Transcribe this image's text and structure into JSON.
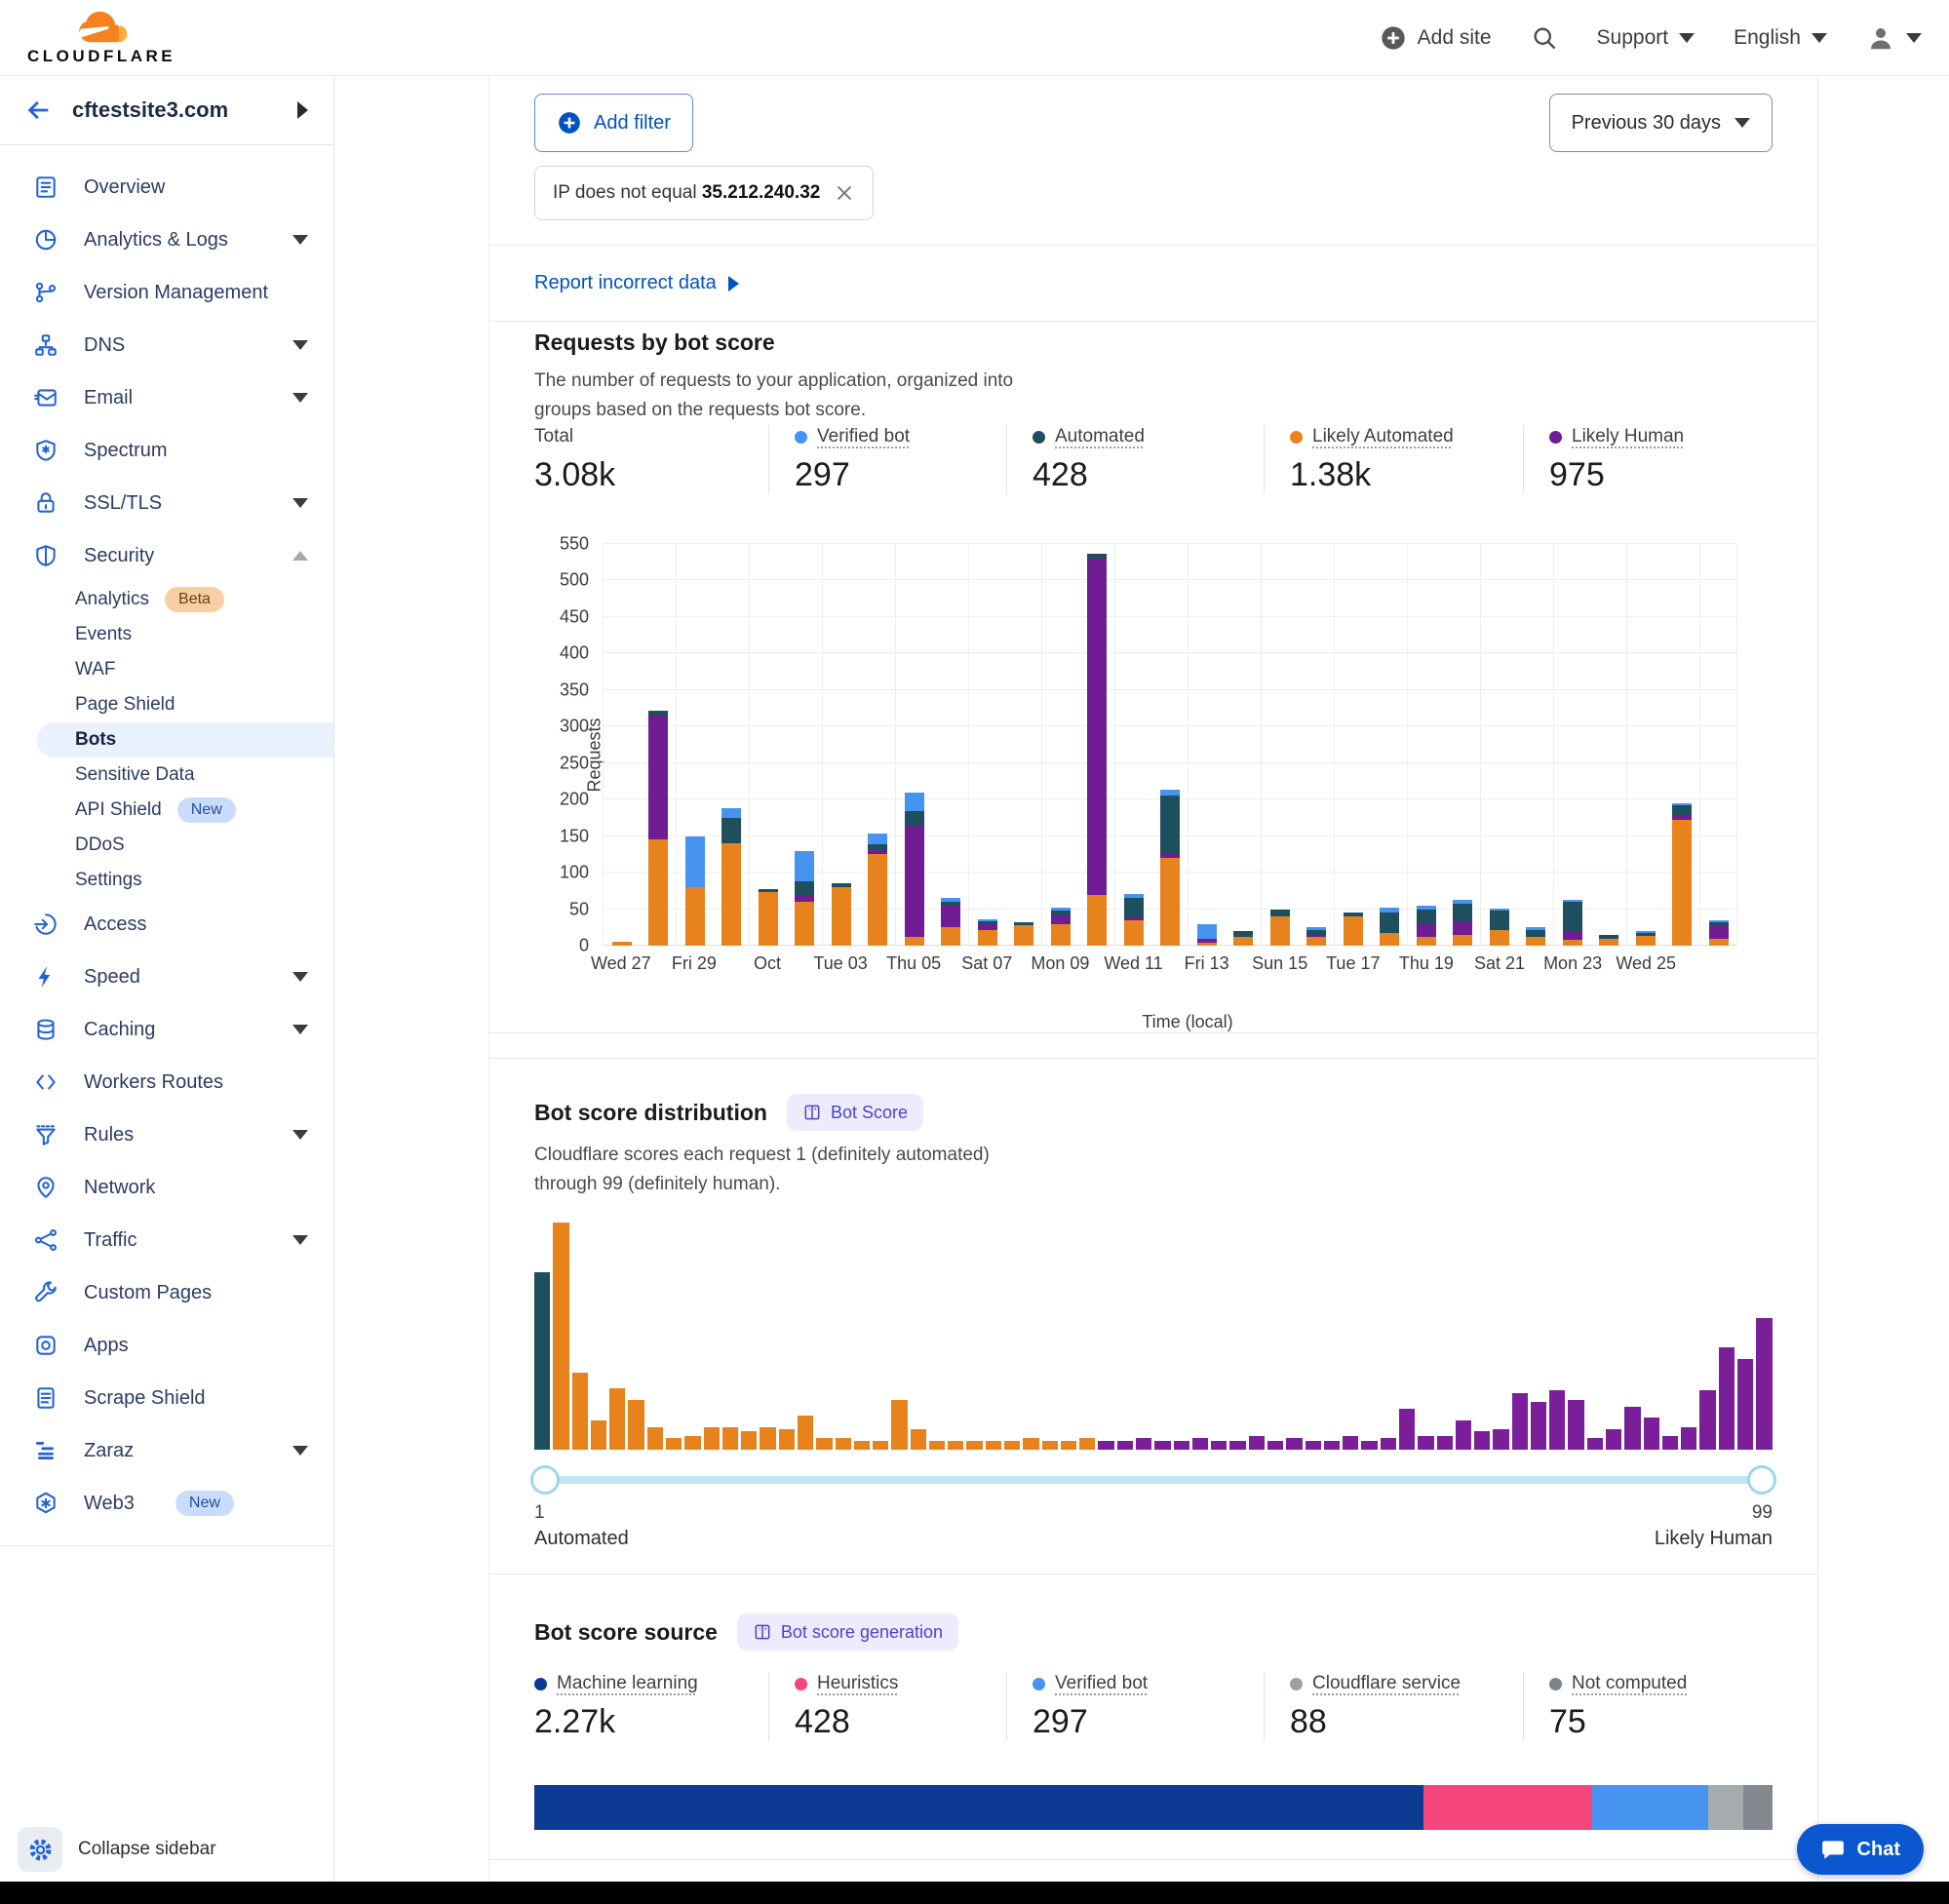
{
  "header": {
    "logo": "CLOUDFLARE",
    "add_site": "Add site",
    "support": "Support",
    "language": "English"
  },
  "sidebar": {
    "site_name": "cftestsite3.com",
    "items": [
      {
        "label": "Overview",
        "icon": "overview-icon"
      },
      {
        "label": "Analytics & Logs",
        "icon": "analytics-icon",
        "expandable": true
      },
      {
        "label": "Version Management",
        "icon": "version-management-icon"
      },
      {
        "label": "DNS",
        "icon": "dns-icon",
        "expandable": true
      },
      {
        "label": "Email",
        "icon": "email-icon",
        "expandable": true
      },
      {
        "label": "Spectrum",
        "icon": "spectrum-icon"
      },
      {
        "label": "SSL/TLS",
        "icon": "ssl-tls-icon",
        "expandable": true
      },
      {
        "label": "Security",
        "icon": "security-icon",
        "expandable": true,
        "expanded": true,
        "children": [
          {
            "label": "Analytics",
            "badge": "Beta",
            "badge_style": "beta"
          },
          {
            "label": "Events"
          },
          {
            "label": "WAF"
          },
          {
            "label": "Page Shield"
          },
          {
            "label": "Bots",
            "selected": true
          },
          {
            "label": "Sensitive Data"
          },
          {
            "label": "API Shield",
            "badge": "New",
            "badge_style": "new"
          },
          {
            "label": "DDoS"
          },
          {
            "label": "Settings"
          }
        ]
      },
      {
        "label": "Access",
        "icon": "access-icon"
      },
      {
        "label": "Speed",
        "icon": "speed-icon",
        "expandable": true
      },
      {
        "label": "Caching",
        "icon": "caching-icon",
        "expandable": true
      },
      {
        "label": "Workers Routes",
        "icon": "workers-routes-icon"
      },
      {
        "label": "Rules",
        "icon": "rules-icon",
        "expandable": true
      },
      {
        "label": "Network",
        "icon": "network-icon"
      },
      {
        "label": "Traffic",
        "icon": "traffic-icon",
        "expandable": true
      },
      {
        "label": "Custom Pages",
        "icon": "custom-pages-icon"
      },
      {
        "label": "Apps",
        "icon": "apps-icon"
      },
      {
        "label": "Scrape Shield",
        "icon": "scrape-shield-icon"
      },
      {
        "label": "Zaraz",
        "icon": "zaraz-icon",
        "expandable": true
      },
      {
        "label": "Web3",
        "icon": "web3-icon",
        "badge": "New",
        "badge_style": "new"
      }
    ],
    "collapse_label": "Collapse sidebar"
  },
  "toolbar": {
    "add_filter": "Add filter",
    "filter_chip": {
      "text": "IP does not equal",
      "value": "35.212.240.32"
    },
    "time_range": "Previous 30 days"
  },
  "report_link": "Report incorrect data",
  "requests_section": {
    "title": "Requests by bot score",
    "description_line1": "The number of requests to your application, organized into",
    "description_line2": "groups based on the requests bot score.",
    "stats": [
      {
        "label": "Total",
        "value": "3.08k",
        "color": null
      },
      {
        "label": "Verified bot",
        "value": "297",
        "color": "#4693f0"
      },
      {
        "label": "Automated",
        "value": "428",
        "color": "#1d4f5f"
      },
      {
        "label": "Likely Automated",
        "value": "1.38k",
        "color": "#e8821d"
      },
      {
        "label": "Likely Human",
        "value": "975",
        "color": "#701d93"
      }
    ]
  },
  "distribution_section": {
    "title": "Bot score distribution",
    "badge": "Bot Score",
    "description_line1": "Cloudflare scores each request 1 (definitely automated)",
    "description_line2": "through 99 (definitely human).",
    "slider": {
      "min_label": "1",
      "max_label": "99",
      "left_caption": "Automated",
      "right_caption": "Likely Human"
    }
  },
  "source_section": {
    "title": "Bot score source",
    "badge": "Bot score generation",
    "stats": [
      {
        "label": "Machine learning",
        "value": "2.27k",
        "color": "#0d3a93"
      },
      {
        "label": "Heuristics",
        "value": "428",
        "color": "#f5477b"
      },
      {
        "label": "Verified bot",
        "value": "297",
        "color": "#4693f0"
      },
      {
        "label": "Cloudflare service",
        "value": "88",
        "color": "#9aa0a5"
      },
      {
        "label": "Not computed",
        "value": "75",
        "color": "#7e8489"
      }
    ]
  },
  "chat_label": "Chat",
  "chart_data": [
    {
      "type": "bar",
      "stacked": true,
      "title": "Requests by bot score",
      "xlabel": "Time (local)",
      "ylabel": "Requests",
      "ylim": [
        0,
        550
      ],
      "ytick_step": 50,
      "grid": true,
      "x_tick_labels": [
        "Wed 27",
        "Fri 29",
        "Oct",
        "Tue 03",
        "Thu 05",
        "Sat 07",
        "Mon 09",
        "Wed 11",
        "Fri 13",
        "Sun 15",
        "Tue 17",
        "Thu 19",
        "Sat 21",
        "Mon 23",
        "Wed 25"
      ],
      "num_bars": 31,
      "series": [
        {
          "name": "Likely Automated",
          "color": "#e8821d",
          "values": [
            6,
            145,
            80,
            140,
            74,
            60,
            80,
            125,
            12,
            25,
            22,
            28,
            30,
            70,
            35,
            120,
            4,
            12,
            40,
            12,
            40,
            18,
            12,
            15,
            22,
            12,
            8,
            10,
            14,
            172,
            10
          ]
        },
        {
          "name": "Likely Human",
          "color": "#701d93",
          "values": [
            0,
            170,
            0,
            0,
            0,
            8,
            0,
            6,
            152,
            30,
            8,
            0,
            12,
            460,
            4,
            5,
            6,
            0,
            0,
            3,
            0,
            0,
            18,
            18,
            0,
            0,
            12,
            0,
            0,
            5,
            18
          ]
        },
        {
          "name": "Automated",
          "color": "#1d4f5f",
          "values": [
            0,
            7,
            0,
            35,
            4,
            20,
            5,
            8,
            20,
            5,
            3,
            4,
            6,
            7,
            26,
            80,
            0,
            8,
            10,
            6,
            5,
            28,
            20,
            25,
            26,
            10,
            40,
            5,
            4,
            15,
            4
          ]
        },
        {
          "name": "Verified bot",
          "color": "#4693f0",
          "values": [
            0,
            0,
            70,
            13,
            0,
            42,
            0,
            14,
            26,
            5,
            2,
            0,
            4,
            0,
            6,
            8,
            20,
            0,
            0,
            4,
            0,
            6,
            5,
            5,
            3,
            3,
            3,
            0,
            2,
            3,
            3
          ]
        }
      ],
      "totals": {
        "Total": "3.08k",
        "Verified bot": 297,
        "Automated": 428,
        "Likely Automated": "1.38k",
        "Likely Human": 975
      }
    },
    {
      "type": "bar",
      "title": "Bot score distribution",
      "xlim": [
        1,
        99
      ],
      "note": "histogram of request bot scores; h = height relative to max bar = 100; c: t=Automated teal, o=Likely Automated orange, p=Likely Human purple",
      "colors": {
        "t": "#1d4f5f",
        "o": "#e8821d",
        "p": "#7a1f99"
      },
      "bars": [
        {
          "c": "t",
          "h": 78
        },
        {
          "c": "o",
          "h": 100
        },
        {
          "c": "o",
          "h": 34
        },
        {
          "c": "o",
          "h": 13
        },
        {
          "c": "o",
          "h": 27
        },
        {
          "c": "o",
          "h": 22
        },
        {
          "c": "o",
          "h": 10
        },
        {
          "c": "o",
          "h": 5
        },
        {
          "c": "o",
          "h": 6
        },
        {
          "c": "o",
          "h": 10
        },
        {
          "c": "o",
          "h": 10
        },
        {
          "c": "o",
          "h": 8
        },
        {
          "c": "o",
          "h": 10
        },
        {
          "c": "o",
          "h": 9
        },
        {
          "c": "o",
          "h": 15
        },
        {
          "c": "o",
          "h": 5
        },
        {
          "c": "o",
          "h": 5
        },
        {
          "c": "o",
          "h": 4
        },
        {
          "c": "o",
          "h": 4
        },
        {
          "c": "o",
          "h": 22
        },
        {
          "c": "o",
          "h": 9
        },
        {
          "c": "o",
          "h": 4
        },
        {
          "c": "o",
          "h": 4
        },
        {
          "c": "o",
          "h": 4
        },
        {
          "c": "o",
          "h": 4
        },
        {
          "c": "o",
          "h": 4
        },
        {
          "c": "o",
          "h": 5
        },
        {
          "c": "o",
          "h": 4
        },
        {
          "c": "o",
          "h": 4
        },
        {
          "c": "o",
          "h": 5
        },
        {
          "c": "p",
          "h": 4
        },
        {
          "c": "p",
          "h": 4
        },
        {
          "c": "p",
          "h": 5
        },
        {
          "c": "p",
          "h": 4
        },
        {
          "c": "p",
          "h": 4
        },
        {
          "c": "p",
          "h": 5
        },
        {
          "c": "p",
          "h": 4
        },
        {
          "c": "p",
          "h": 4
        },
        {
          "c": "p",
          "h": 6
        },
        {
          "c": "p",
          "h": 4
        },
        {
          "c": "p",
          "h": 5
        },
        {
          "c": "p",
          "h": 4
        },
        {
          "c": "p",
          "h": 4
        },
        {
          "c": "p",
          "h": 6
        },
        {
          "c": "p",
          "h": 4
        },
        {
          "c": "p",
          "h": 5
        },
        {
          "c": "p",
          "h": 18
        },
        {
          "c": "p",
          "h": 6
        },
        {
          "c": "p",
          "h": 6
        },
        {
          "c": "p",
          "h": 13
        },
        {
          "c": "p",
          "h": 8
        },
        {
          "c": "p",
          "h": 9
        },
        {
          "c": "p",
          "h": 25
        },
        {
          "c": "p",
          "h": 21
        },
        {
          "c": "p",
          "h": 26
        },
        {
          "c": "p",
          "h": 22
        },
        {
          "c": "p",
          "h": 5
        },
        {
          "c": "p",
          "h": 9
        },
        {
          "c": "p",
          "h": 19
        },
        {
          "c": "p",
          "h": 14
        },
        {
          "c": "p",
          "h": 6
        },
        {
          "c": "p",
          "h": 10
        },
        {
          "c": "p",
          "h": 26
        },
        {
          "c": "p",
          "h": 45
        },
        {
          "c": "p",
          "h": 40
        },
        {
          "c": "p",
          "h": 58
        }
      ]
    },
    {
      "type": "bar",
      "title": "Bot score source share",
      "segments": [
        {
          "name": "Machine learning",
          "value": 2270,
          "pct": 71.9,
          "color": "#0d3a93"
        },
        {
          "name": "Heuristics",
          "value": 428,
          "pct": 13.6,
          "color": "#f5477b"
        },
        {
          "name": "Verified bot",
          "value": 297,
          "pct": 9.4,
          "color": "#4693f0"
        },
        {
          "name": "Cloudflare service",
          "value": 88,
          "pct": 2.8,
          "color": "#a6abb0"
        },
        {
          "name": "Not computed",
          "value": 75,
          "pct": 2.4,
          "color": "#83898e"
        }
      ]
    }
  ]
}
